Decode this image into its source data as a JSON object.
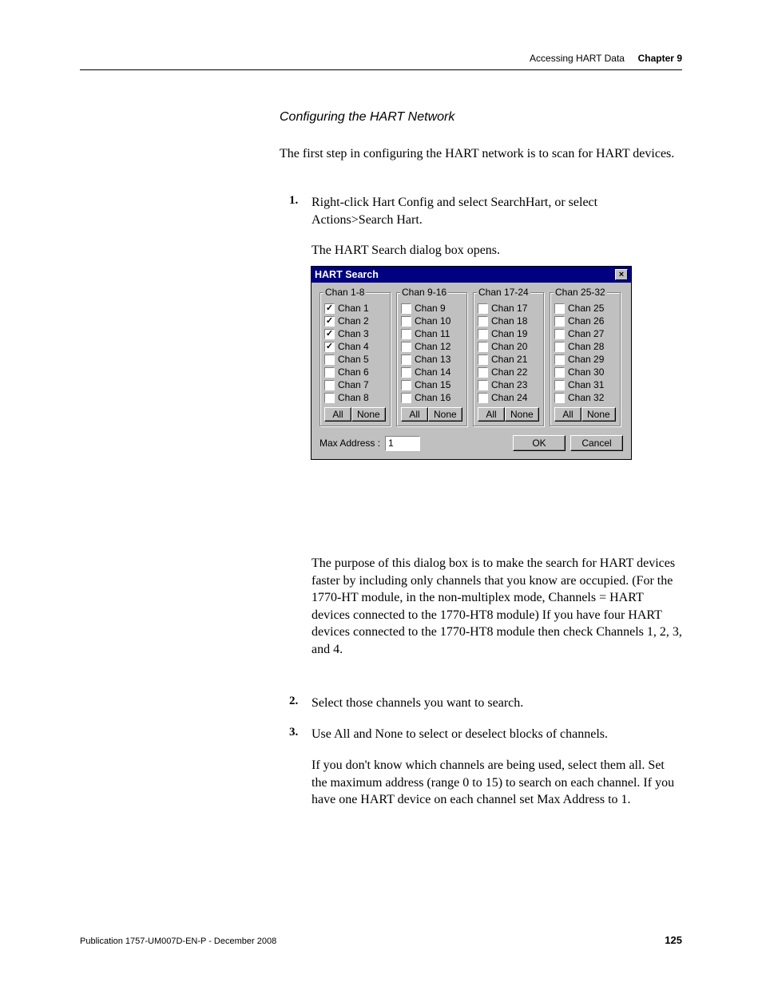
{
  "header": {
    "breadcrumb": "Accessing HART Data",
    "chapter": "Chapter 9"
  },
  "section_title": "Configuring the HART Network",
  "intro": "The first step in configuring the HART network is to scan for HART devices.",
  "step1_num": "1.",
  "step1": "Right-click Hart Config and select SearchHart, or select Actions>Search Hart.",
  "step1b": "The HART Search dialog box opens.",
  "dialog": {
    "title": "HART Search",
    "groups": [
      {
        "legend": "Chan 1-8",
        "start": 1,
        "checked": [
          1,
          2,
          3,
          4
        ]
      },
      {
        "legend": "Chan 9-16",
        "start": 9,
        "checked": []
      },
      {
        "legend": "Chan 17-24",
        "start": 17,
        "checked": []
      },
      {
        "legend": "Chan 25-32",
        "start": 25,
        "checked": []
      }
    ],
    "all_label": "All",
    "none_label": "None",
    "max_addr_label": "Max Address :",
    "max_addr_value": "1",
    "ok_label": "OK",
    "cancel_label": "Cancel",
    "chan_prefix": "Chan "
  },
  "post1": "The purpose of this dialog box is to make the search for HART devices faster by including only channels that you know are occupied. (For the 1770-HT module, in the non-multiplex mode, Channels = HART devices connected to the 1770-HT8 module) If you have four HART devices connected to the 1770-HT8 module then check Channels 1, 2, 3, and 4.",
  "step2_num": "2.",
  "step2": "Select those channels you want to search.",
  "step3_num": "3.",
  "step3": "Use All and None to select or deselect blocks of channels.",
  "step3b": "If you don't know which channels are being used, select them all. Set the maximum address (range 0 to 15) to search on each channel. If you have one HART device on each channel set Max Address to 1.",
  "footer": {
    "publication": "Publication 1757-UM007D-EN-P - December 2008",
    "page": "125"
  },
  "colors": {
    "dialog_bg": "#c0c0c0",
    "titlebar_bg": "#000080",
    "titlebar_fg": "#ffffff",
    "page_bg": "#ffffff",
    "text": "#000000"
  }
}
